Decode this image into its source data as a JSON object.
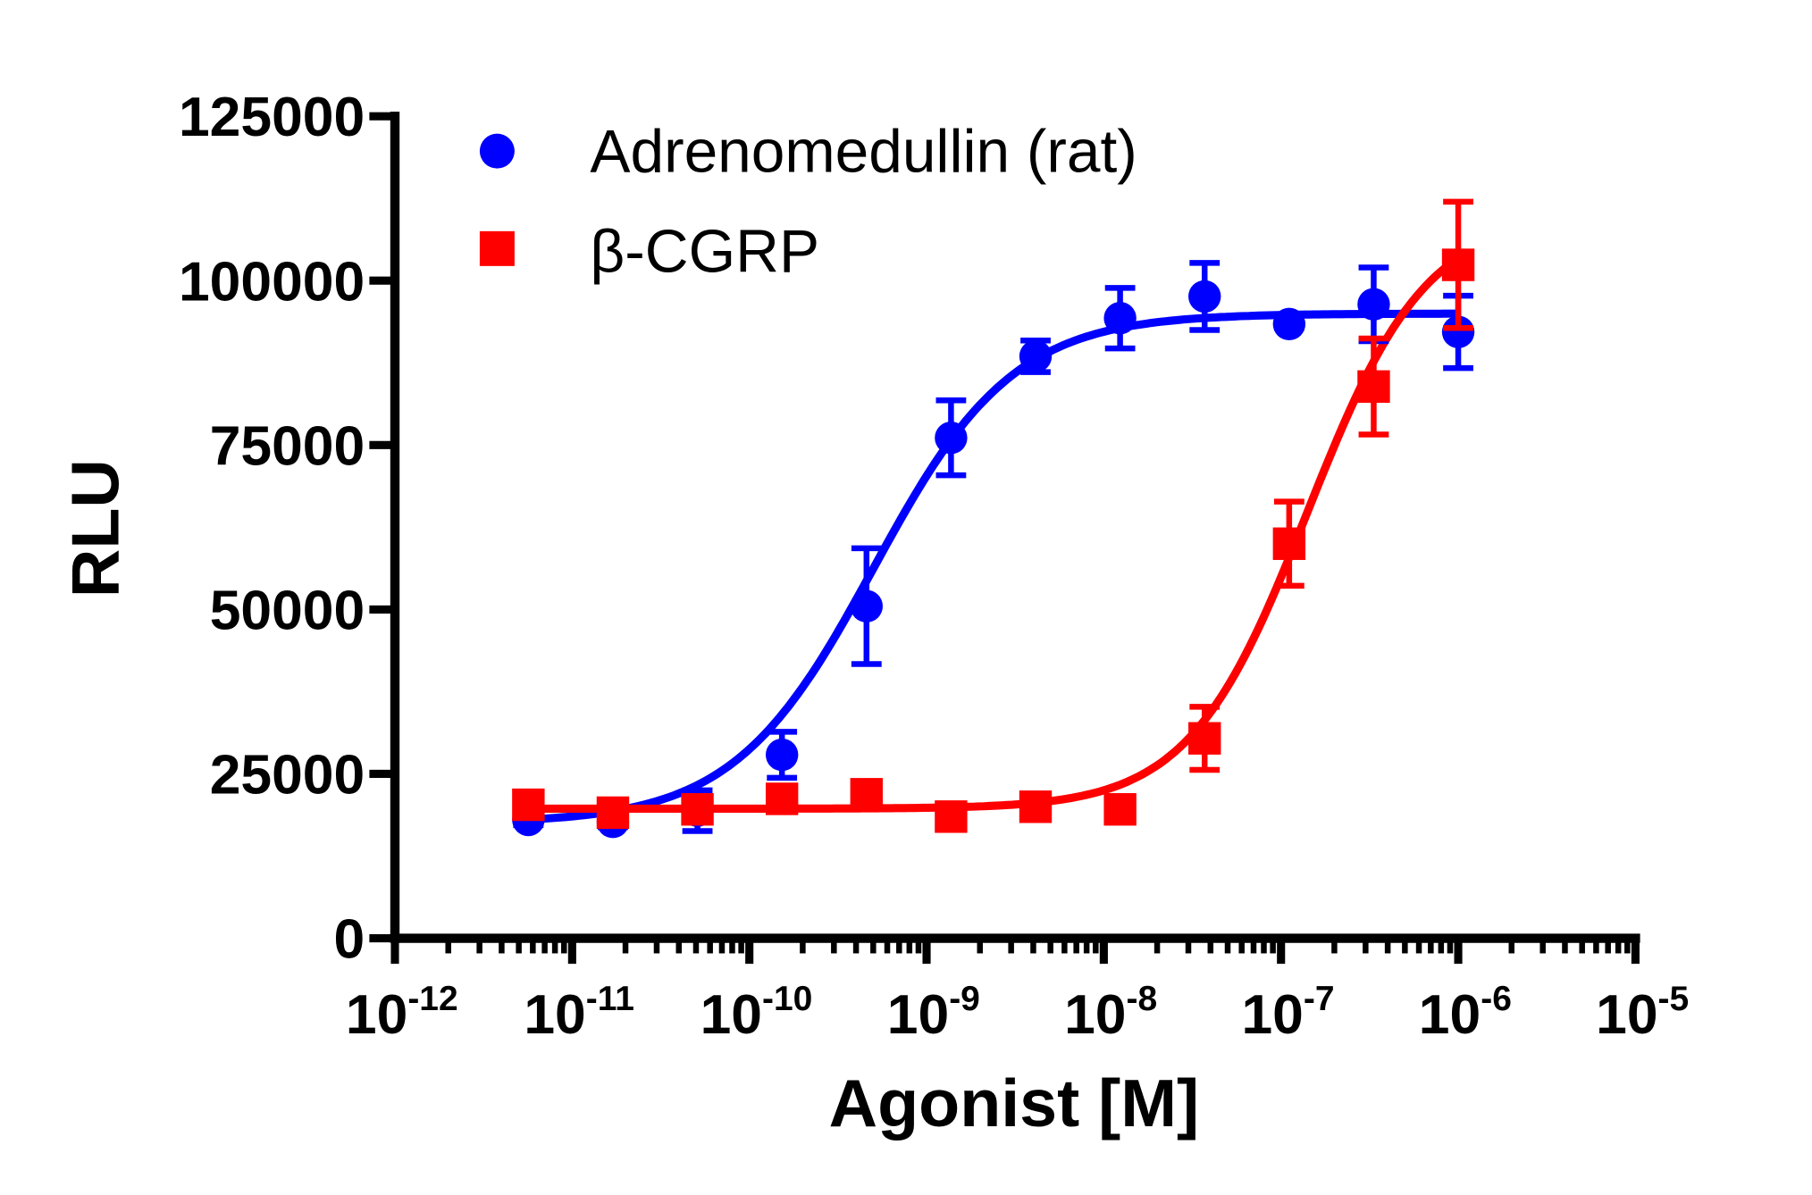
{
  "chart_data": {
    "type": "scatter",
    "title": "",
    "xlabel": "Agonist [M]",
    "ylabel": "RLU",
    "xscale": "log",
    "xlim_log10": [
      -12,
      -5
    ],
    "ylim": [
      0,
      125000
    ],
    "xticks_log10": [
      -12,
      -11,
      -10,
      -9,
      -8,
      -7,
      -6,
      -5
    ],
    "xtick_base": "10",
    "xtick_exponents": [
      "-12",
      "-11",
      "-10",
      "-9",
      "-8",
      "-7",
      "-6",
      "-5"
    ],
    "yticks": [
      0,
      25000,
      50000,
      75000,
      100000,
      125000
    ],
    "ytick_labels": [
      "0",
      "25000",
      "50000",
      "75000",
      "100000",
      "125000"
    ],
    "grid": false,
    "legend_position": "top-left",
    "x_log10": [
      -11.247,
      -10.77,
      -10.293,
      -9.816,
      -9.339,
      -8.862,
      -8.385,
      -7.908,
      -7.431,
      -6.954,
      -6.477,
      -6.0
    ],
    "series": [
      {
        "name": "Adrenomedullin (rat)",
        "color": "#0000ff",
        "marker": "circle",
        "values": [
          18000,
          17700,
          19400,
          27900,
          50500,
          76100,
          88500,
          94300,
          97600,
          93400,
          96400,
          92200
        ],
        "errors": [
          800,
          800,
          3100,
          3500,
          8800,
          5700,
          2400,
          4600,
          5100,
          600,
          5600,
          5500
        ],
        "fit": {
          "bottom": 17500,
          "top": 95000,
          "logEC50": -9.3,
          "hill": 1.1
        }
      },
      {
        "name": "β-CGRP",
        "color": "#ff0000",
        "marker": "square",
        "values": [
          20300,
          19100,
          19600,
          21200,
          21900,
          18500,
          20000,
          19600,
          30400,
          60000,
          83900,
          102400
        ],
        "errors": [
          800,
          800,
          800,
          1500,
          1500,
          800,
          800,
          800,
          4800,
          6400,
          7300,
          9600
        ],
        "fit": {
          "bottom": 19700,
          "top": 110000,
          "logEC50": -6.85,
          "hill": 1.3
        }
      }
    ]
  }
}
